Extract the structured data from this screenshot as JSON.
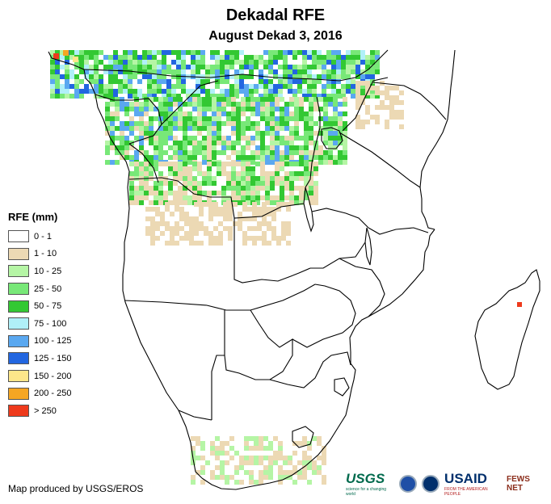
{
  "map": {
    "title": "Dekadal RFE",
    "subtitle": "August Dekad 3, 2016",
    "region": "Southern Africa",
    "colors": {
      "outline": "#000000",
      "land": "#ffffff"
    }
  },
  "legend": {
    "title": "RFE (mm)",
    "classes": [
      {
        "label": "0 - 1",
        "color": "#ffffff"
      },
      {
        "label": "1 - 10",
        "color": "#ecd9b4"
      },
      {
        "label": "10 - 25",
        "color": "#b5f5a5"
      },
      {
        "label": "25 - 50",
        "color": "#78e878"
      },
      {
        "label": "50 - 75",
        "color": "#33c833"
      },
      {
        "label": "75 - 100",
        "color": "#b0f0f8"
      },
      {
        "label": "100 - 125",
        "color": "#5aa8f0"
      },
      {
        "label": "125 - 150",
        "color": "#2266e0"
      },
      {
        "label": "150 - 200",
        "color": "#fde68a"
      },
      {
        "label": "200 - 250",
        "color": "#f5a623"
      },
      {
        "label": "> 250",
        "color": "#ee3a1c"
      }
    ]
  },
  "credit": "Map produced by USGS/EROS",
  "logos": {
    "usgs": "USGS",
    "usgs_tagline": "science for a changing world",
    "usaid": "USAID",
    "usaid_tagline": "FROM THE AMERICAN PEOPLE",
    "fews": "FEWS NET"
  }
}
